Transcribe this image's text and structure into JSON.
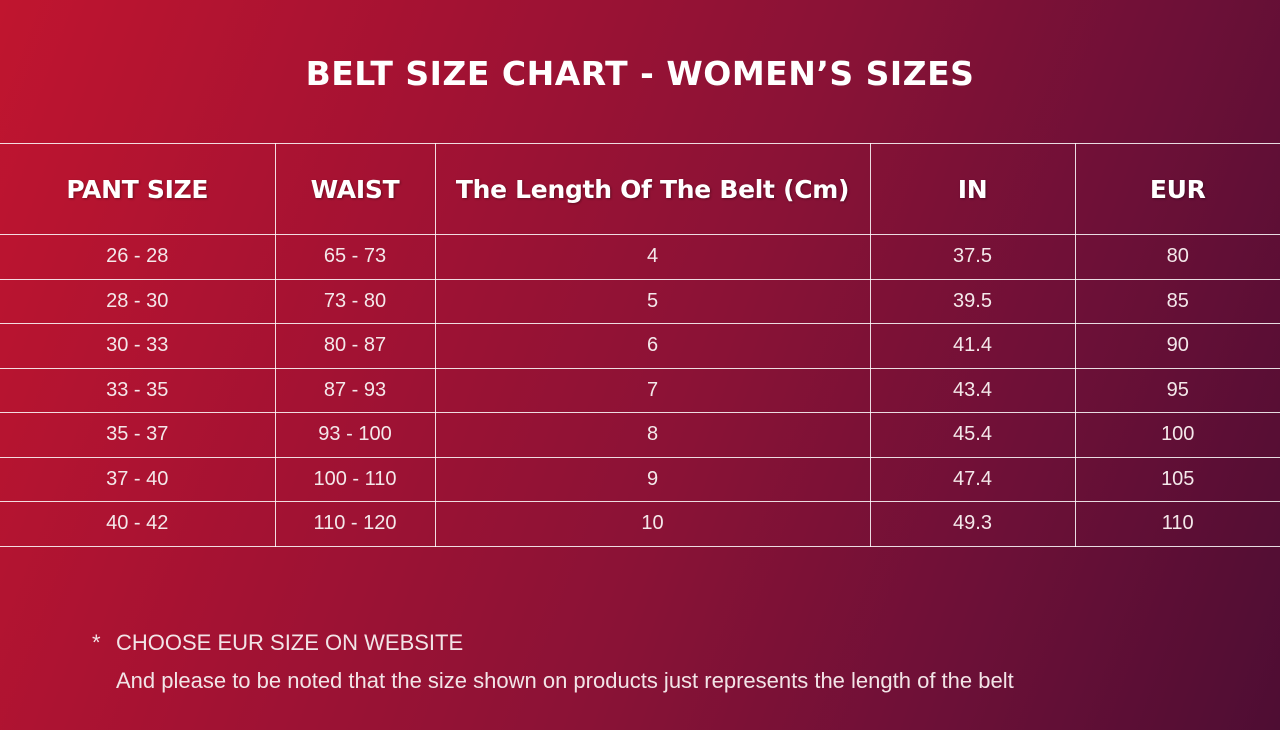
{
  "title": "BELT SIZE CHART - WOMEN’S SIZES",
  "table": {
    "headers": [
      "PANT SIZE",
      "WAIST",
      "The Length Of The Belt (Cm)",
      "IN",
      "EUR"
    ],
    "rows": [
      [
        "26 - 28",
        "65 - 73",
        "4",
        "37.5",
        "80"
      ],
      [
        "28 - 30",
        "73 - 80",
        "5",
        "39.5",
        "85"
      ],
      [
        "30 - 33",
        "80 - 87",
        "6",
        "41.4",
        "90"
      ],
      [
        "33 - 35",
        "87 - 93",
        "7",
        "43.4",
        "95"
      ],
      [
        "35 - 37",
        "93 - 100",
        "8",
        "45.4",
        "100"
      ],
      [
        "37 - 40",
        "100 - 110",
        "9",
        "47.4",
        "105"
      ],
      [
        "40 - 42",
        "110 - 120",
        "10",
        "49.3",
        "110"
      ]
    ]
  },
  "note": {
    "marker": "*",
    "line1": "CHOOSE EUR SIZE ON WEBSITE",
    "line2": "And please to be noted that the size shown on products just represents the length of the belt"
  },
  "colors": {
    "background_left": "#c0152f",
    "background_right": "#4e0d33",
    "text": "#ffffff",
    "grid_lines": "#ffffff"
  }
}
